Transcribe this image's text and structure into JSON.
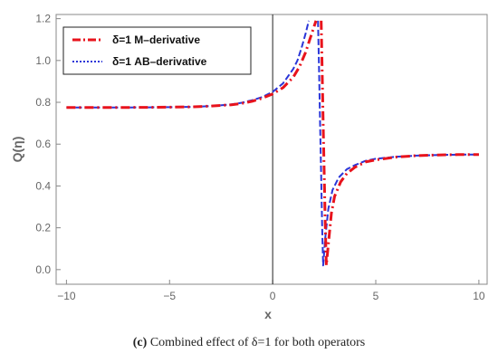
{
  "chart_data": {
    "type": "line",
    "title": "",
    "xlabel": "x",
    "ylabel": "Q(η)",
    "xlim": [
      -10.5,
      10.4
    ],
    "ylim": [
      -0.07,
      1.22
    ],
    "x_ticks": [
      -10,
      -5,
      0,
      5,
      10
    ],
    "x_tick_labels": [
      "−10",
      "−5",
      "0",
      "5",
      "10"
    ],
    "y_ticks": [
      0.0,
      0.2,
      0.4,
      0.6,
      0.8,
      1.0,
      1.2
    ],
    "y_tick_labels": [
      "0.0",
      "0.2",
      "0.4",
      "0.6",
      "0.8",
      "1.0",
      "1.2"
    ],
    "grid": false,
    "legend_position": "top-left",
    "series": [
      {
        "name": "δ=1 M–derivative",
        "color": "#e8131c",
        "style": "dash-dot",
        "x": [
          -10,
          -8,
          -6,
          -4,
          -3,
          -2,
          -1.5,
          -1,
          -0.5,
          0,
          0.5,
          1,
          1.3,
          1.6,
          1.8,
          2.0,
          2.1
        ],
        "y": [
          0.775,
          0.775,
          0.776,
          0.778,
          0.782,
          0.788,
          0.795,
          0.805,
          0.82,
          0.84,
          0.87,
          0.92,
          0.97,
          1.04,
          1.1,
          1.16,
          1.19
        ],
        "x2": [
          2.35,
          2.4,
          2.45,
          2.5,
          2.55,
          2.6,
          2.7,
          2.85,
          3.0,
          3.3,
          3.6,
          4.0,
          4.5,
          5.0,
          6.0,
          7.0,
          8.0,
          9.0,
          10.0
        ],
        "y2": [
          1.19,
          0.95,
          0.7,
          0.45,
          0.22,
          0.02,
          0.12,
          0.27,
          0.35,
          0.42,
          0.46,
          0.49,
          0.515,
          0.525,
          0.538,
          0.545,
          0.548,
          0.55,
          0.55
        ]
      },
      {
        "name": "δ=1 AB–derivative",
        "color": "#2a35d8",
        "style": "dotted",
        "x": [
          -10,
          -8,
          -6,
          -4,
          -3,
          -2,
          -1.5,
          -1,
          -0.5,
          0,
          0.5,
          1,
          1.2,
          1.4,
          1.6,
          1.75
        ],
        "y": [
          0.775,
          0.775,
          0.776,
          0.778,
          0.782,
          0.79,
          0.798,
          0.81,
          0.825,
          0.85,
          0.89,
          0.96,
          1.0,
          1.06,
          1.13,
          1.19
        ],
        "x2": [
          2.2,
          2.25,
          2.3,
          2.35,
          2.4,
          2.45,
          2.55,
          2.7,
          2.9,
          3.2,
          3.6,
          4.0,
          4.5,
          5.0,
          6.0,
          7.0,
          8.0,
          9.0,
          10.0
        ],
        "y2": [
          1.19,
          0.95,
          0.7,
          0.45,
          0.2,
          0.02,
          0.15,
          0.29,
          0.38,
          0.44,
          0.48,
          0.5,
          0.52,
          0.53,
          0.54,
          0.545,
          0.548,
          0.55,
          0.55
        ]
      }
    ]
  },
  "legend": {
    "items": [
      {
        "label": "δ=1 M–derivative",
        "color": "#e8131c"
      },
      {
        "label": "δ=1 AB–derivative",
        "color": "#2a35d8"
      }
    ]
  },
  "caption": {
    "letter": "(c)",
    "text": " Combined effect of δ=1 for both operators"
  }
}
